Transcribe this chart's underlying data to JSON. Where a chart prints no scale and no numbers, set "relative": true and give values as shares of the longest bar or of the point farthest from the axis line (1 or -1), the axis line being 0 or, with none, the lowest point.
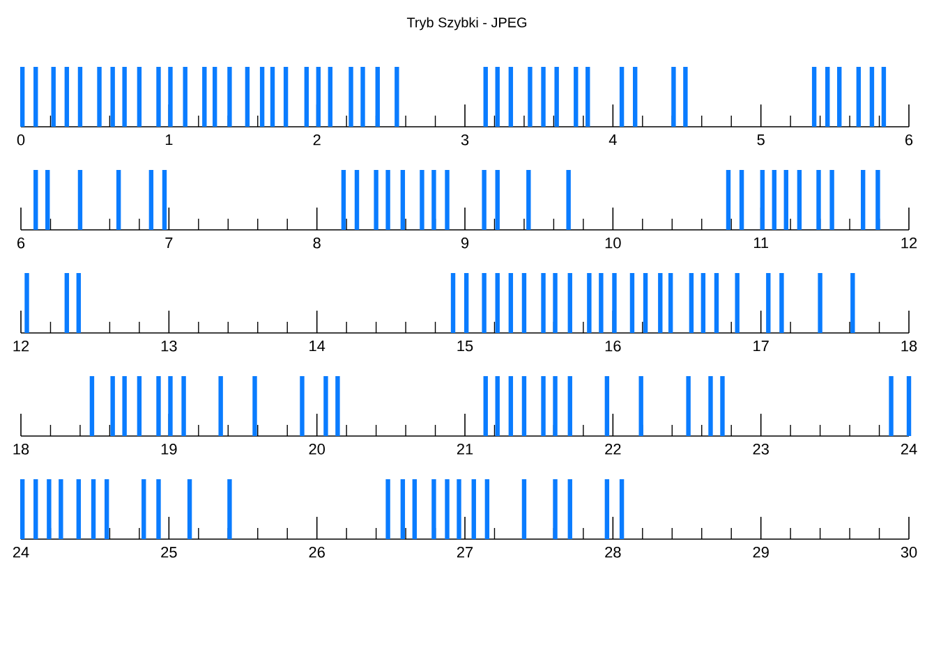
{
  "chart_data": [
    {
      "type": "bar",
      "title": "Tryb Szybki - JPEG",
      "relative": true,
      "color": "#0a7cff",
      "xlim": [
        0,
        6
      ],
      "xticks": [
        0,
        {
          "value": 0.2,
          "label": null
        },
        {
          "value": 0.4,
          "label": null
        },
        {
          "value": 0.6,
          "label": null
        },
        {
          "value": 0.8,
          "label": null
        },
        1,
        {
          "value": 1.2,
          "label": null
        },
        {
          "value": 1.4,
          "label": null
        },
        {
          "value": 1.6,
          "label": null
        },
        {
          "value": 1.8,
          "label": null
        },
        2,
        {
          "value": 2.2,
          "label": null
        },
        {
          "value": 2.4,
          "label": null
        },
        {
          "value": 2.6,
          "label": null
        },
        {
          "value": 2.8,
          "label": null
        },
        3,
        {
          "value": 3.2,
          "label": null
        },
        {
          "value": 3.4,
          "label": null
        },
        {
          "value": 3.6,
          "label": null
        },
        {
          "value": 3.8,
          "label": null
        },
        4,
        {
          "value": 4.2,
          "label": null
        },
        {
          "value": 4.4,
          "label": null
        },
        {
          "value": 4.6,
          "label": null
        },
        {
          "value": 4.8,
          "label": null
        },
        5,
        {
          "value": 5.2,
          "label": null
        },
        {
          "value": 5.4,
          "label": null
        },
        {
          "value": 5.6,
          "label": null
        },
        {
          "value": 5.8,
          "label": null
        },
        6
      ],
      "x": [
        0.01,
        0.1,
        0.22,
        0.31,
        0.4,
        0.53,
        0.62,
        0.7,
        0.8,
        0.93,
        1.01,
        1.11,
        1.24,
        1.31,
        1.41,
        1.53,
        1.63,
        1.7,
        1.79,
        1.93,
        2.01,
        2.09,
        2.23,
        2.31,
        2.41,
        2.54,
        3.14,
        3.22,
        3.31,
        3.44,
        3.53,
        3.62,
        3.75,
        3.83,
        4.06,
        4.15,
        4.41,
        4.49,
        5.36,
        5.45,
        5.53,
        5.66,
        5.75,
        5.83
      ],
      "values": [
        1,
        1,
        1,
        1,
        1,
        1,
        1,
        1,
        1,
        1,
        1,
        1,
        1,
        1,
        1,
        1,
        1,
        1,
        1,
        1,
        1,
        1,
        1,
        1,
        1,
        1,
        1,
        1,
        1,
        1,
        1,
        1,
        1,
        1,
        1,
        1,
        1,
        1,
        1,
        1,
        1,
        1,
        1,
        1
      ]
    },
    {
      "type": "bar",
      "relative": true,
      "color": "#0a7cff",
      "xlim": [
        6,
        12
      ],
      "xticks": [
        6,
        {
          "value": 6.2,
          "label": null
        },
        {
          "value": 6.4,
          "label": null
        },
        {
          "value": 6.6,
          "label": null
        },
        {
          "value": 6.8,
          "label": null
        },
        7,
        {
          "value": 7.2,
          "label": null
        },
        {
          "value": 7.4,
          "label": null
        },
        {
          "value": 7.6,
          "label": null
        },
        {
          "value": 7.8,
          "label": null
        },
        8,
        {
          "value": 8.2,
          "label": null
        },
        {
          "value": 8.4,
          "label": null
        },
        {
          "value": 8.6,
          "label": null
        },
        {
          "value": 8.8,
          "label": null
        },
        9,
        {
          "value": 9.2,
          "label": null
        },
        {
          "value": 9.4,
          "label": null
        },
        {
          "value": 9.6,
          "label": null
        },
        {
          "value": 9.8,
          "label": null
        },
        10,
        {
          "value": 10.2,
          "label": null
        },
        {
          "value": 10.4,
          "label": null
        },
        {
          "value": 10.6,
          "label": null
        },
        {
          "value": 10.8,
          "label": null
        },
        11,
        {
          "value": 11.2,
          "label": null
        },
        {
          "value": 11.4,
          "label": null
        },
        {
          "value": 11.6,
          "label": null
        },
        {
          "value": 11.8,
          "label": null
        },
        12
      ],
      "x": [
        6.1,
        6.18,
        6.4,
        6.66,
        6.88,
        6.97,
        8.18,
        8.27,
        8.4,
        8.48,
        8.58,
        8.71,
        8.79,
        8.88,
        9.13,
        9.22,
        9.43,
        9.7,
        10.78,
        10.87,
        11.01,
        11.09,
        11.17,
        11.26,
        11.39,
        11.48,
        11.69,
        11.79
      ],
      "values": [
        1,
        1,
        1,
        1,
        1,
        1,
        1,
        1,
        1,
        1,
        1,
        1,
        1,
        1,
        1,
        1,
        1,
        1,
        1,
        1,
        1,
        1,
        1,
        1,
        1,
        1,
        1,
        1
      ]
    },
    {
      "type": "bar",
      "relative": true,
      "color": "#0a7cff",
      "xlim": [
        12,
        18
      ],
      "xticks": [
        12,
        {
          "value": 12.2,
          "label": null
        },
        {
          "value": 12.4,
          "label": null
        },
        {
          "value": 12.6,
          "label": null
        },
        {
          "value": 12.8,
          "label": null
        },
        13,
        {
          "value": 13.2,
          "label": null
        },
        {
          "value": 13.4,
          "label": null
        },
        {
          "value": 13.6,
          "label": null
        },
        {
          "value": 13.8,
          "label": null
        },
        14,
        {
          "value": 14.2,
          "label": null
        },
        {
          "value": 14.4,
          "label": null
        },
        {
          "value": 14.6,
          "label": null
        },
        {
          "value": 14.8,
          "label": null
        },
        15,
        {
          "value": 15.2,
          "label": null
        },
        {
          "value": 15.4,
          "label": null
        },
        {
          "value": 15.6,
          "label": null
        },
        {
          "value": 15.8,
          "label": null
        },
        16,
        {
          "value": 16.2,
          "label": null
        },
        {
          "value": 16.4,
          "label": null
        },
        {
          "value": 16.6,
          "label": null
        },
        {
          "value": 16.8,
          "label": null
        },
        17,
        {
          "value": 17.2,
          "label": null
        },
        {
          "value": 17.4,
          "label": null
        },
        {
          "value": 17.6,
          "label": null
        },
        {
          "value": 17.8,
          "label": null
        },
        18
      ],
      "x": [
        12.04,
        12.31,
        12.39,
        14.92,
        15.01,
        15.13,
        15.22,
        15.31,
        15.4,
        15.53,
        15.61,
        15.71,
        15.84,
        15.92,
        16.01,
        16.13,
        16.22,
        16.32,
        16.39,
        16.53,
        16.61,
        16.7,
        16.84,
        17.05,
        17.14,
        17.4,
        17.62
      ],
      "values": [
        1,
        1,
        1,
        1,
        1,
        1,
        1,
        1,
        1,
        1,
        1,
        1,
        1,
        1,
        1,
        1,
        1,
        1,
        1,
        1,
        1,
        1,
        1,
        1,
        1,
        1,
        1
      ]
    },
    {
      "type": "bar",
      "relative": true,
      "color": "#0a7cff",
      "xlim": [
        18,
        24
      ],
      "xticks": [
        18,
        {
          "value": 18.2,
          "label": null
        },
        {
          "value": 18.4,
          "label": null
        },
        {
          "value": 18.6,
          "label": null
        },
        {
          "value": 18.8,
          "label": null
        },
        19,
        {
          "value": 19.2,
          "label": null
        },
        {
          "value": 19.4,
          "label": null
        },
        {
          "value": 19.6,
          "label": null
        },
        {
          "value": 19.8,
          "label": null
        },
        20,
        {
          "value": 20.2,
          "label": null
        },
        {
          "value": 20.4,
          "label": null
        },
        {
          "value": 20.6,
          "label": null
        },
        {
          "value": 20.8,
          "label": null
        },
        21,
        {
          "value": 21.2,
          "label": null
        },
        {
          "value": 21.4,
          "label": null
        },
        {
          "value": 21.6,
          "label": null
        },
        {
          "value": 21.8,
          "label": null
        },
        22,
        {
          "value": 22.2,
          "label": null
        },
        {
          "value": 22.4,
          "label": null
        },
        {
          "value": 22.6,
          "label": null
        },
        {
          "value": 22.8,
          "label": null
        },
        23,
        {
          "value": 23.2,
          "label": null
        },
        {
          "value": 23.4,
          "label": null
        },
        {
          "value": 23.6,
          "label": null
        },
        {
          "value": 23.8,
          "label": null
        },
        24
      ],
      "x": [
        18.48,
        18.62,
        18.7,
        18.8,
        18.93,
        19.01,
        19.1,
        19.35,
        19.58,
        19.9,
        20.06,
        20.14,
        21.14,
        21.22,
        21.31,
        21.4,
        21.53,
        21.61,
        21.71,
        21.96,
        22.19,
        22.51,
        22.66,
        22.74,
        23.88,
        24.0
      ],
      "values": [
        1,
        1,
        1,
        1,
        1,
        1,
        1,
        1,
        1,
        1,
        1,
        1,
        1,
        1,
        1,
        1,
        1,
        1,
        1,
        1,
        1,
        1,
        1,
        1,
        1,
        1
      ]
    },
    {
      "type": "bar",
      "relative": true,
      "color": "#0a7cff",
      "xlim": [
        24,
        30
      ],
      "xticks": [
        24,
        {
          "value": 24.2,
          "label": null
        },
        {
          "value": 24.4,
          "label": null
        },
        {
          "value": 24.6,
          "label": null
        },
        {
          "value": 24.8,
          "label": null
        },
        25,
        {
          "value": 25.2,
          "label": null
        },
        {
          "value": 25.4,
          "label": null
        },
        {
          "value": 25.6,
          "label": null
        },
        {
          "value": 25.8,
          "label": null
        },
        26,
        {
          "value": 26.2,
          "label": null
        },
        {
          "value": 26.4,
          "label": null
        },
        {
          "value": 26.6,
          "label": null
        },
        {
          "value": 26.8,
          "label": null
        },
        27,
        {
          "value": 27.2,
          "label": null
        },
        {
          "value": 27.4,
          "label": null
        },
        {
          "value": 27.6,
          "label": null
        },
        {
          "value": 27.8,
          "label": null
        },
        28,
        {
          "value": 28.2,
          "label": null
        },
        {
          "value": 28.4,
          "label": null
        },
        {
          "value": 28.6,
          "label": null
        },
        {
          "value": 28.8,
          "label": null
        },
        29,
        {
          "value": 29.2,
          "label": null
        },
        {
          "value": 29.4,
          "label": null
        },
        {
          "value": 29.6,
          "label": null
        },
        {
          "value": 29.8,
          "label": null
        },
        30
      ],
      "x": [
        24.01,
        24.1,
        24.19,
        24.27,
        24.39,
        24.49,
        24.58,
        24.83,
        24.93,
        25.14,
        25.41,
        26.48,
        26.58,
        26.66,
        26.79,
        26.88,
        26.96,
        27.06,
        27.15,
        27.4,
        27.61,
        27.71,
        27.96,
        28.06
      ],
      "values": [
        1,
        1,
        1,
        1,
        1,
        1,
        1,
        1,
        1,
        1,
        1,
        1,
        1,
        1,
        1,
        1,
        1,
        1,
        1,
        1,
        1,
        1,
        1,
        1
      ]
    }
  ]
}
